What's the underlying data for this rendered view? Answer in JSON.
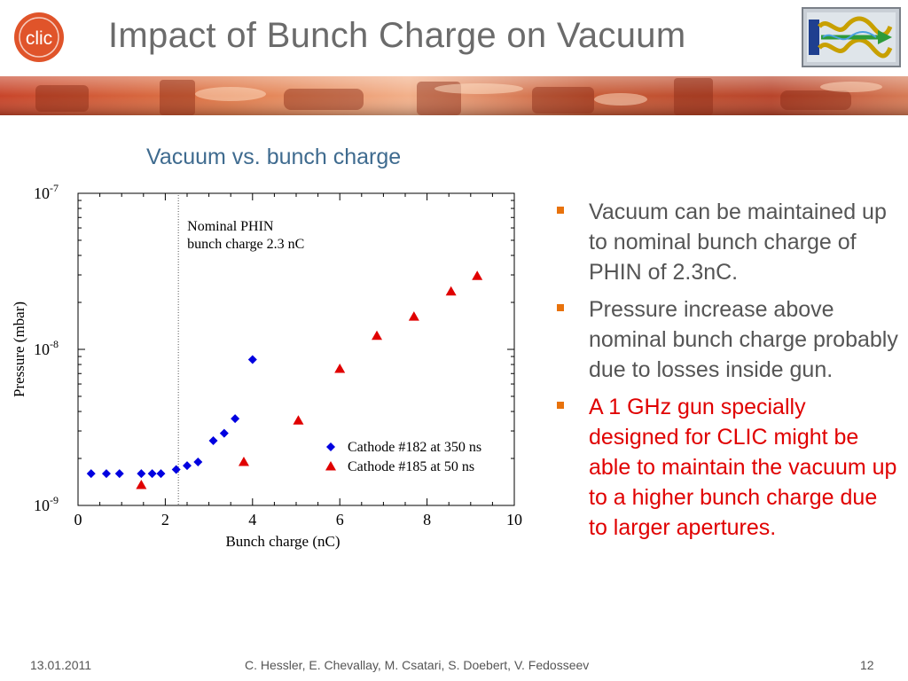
{
  "slide": {
    "title": "Impact of Bunch Charge on Vacuum",
    "logo_left_text": "clic"
  },
  "chart_data": {
    "type": "scatter",
    "title": "Vacuum vs. bunch charge",
    "xlabel": "Bunch charge (nC)",
    "ylabel": "Pressure (mbar)",
    "xlim": [
      0,
      10
    ],
    "ylim": [
      1e-09,
      1e-07
    ],
    "yscale": "log",
    "x_ticks": [
      "0",
      "2",
      "4",
      "6",
      "8",
      "10"
    ],
    "y_ticks": [
      {
        "base": "10",
        "exp": "-7"
      },
      {
        "base": "10",
        "exp": "-8"
      },
      {
        "base": "10",
        "exp": "-9"
      }
    ],
    "annotation": {
      "line1": "Nominal PHIN",
      "line2": "bunch charge 2.3 nC",
      "x": 2.3
    },
    "legend_position": "bottom-right",
    "series": [
      {
        "name": "Cathode #182 at 350 ns",
        "marker": "diamond",
        "color": "#0000e0",
        "x": [
          0.3,
          0.65,
          0.95,
          1.45,
          1.7,
          1.9,
          2.25,
          2.5,
          2.75,
          3.1,
          3.35,
          3.6,
          4.0
        ],
        "y": [
          1.6e-09,
          1.6e-09,
          1.6e-09,
          1.6e-09,
          1.6e-09,
          1.6e-09,
          1.7e-09,
          1.8e-09,
          1.9e-09,
          2.6e-09,
          2.9e-09,
          3.6e-09,
          8.6e-09
        ]
      },
      {
        "name": "Cathode #185 at 50 ns",
        "marker": "triangle",
        "color": "#e00000",
        "x": [
          1.45,
          3.8,
          5.05,
          6.0,
          6.85,
          7.7,
          8.55,
          9.15
        ],
        "y": [
          1.35e-09,
          1.9e-09,
          3.5e-09,
          7.5e-09,
          1.22e-08,
          1.62e-08,
          2.35e-08,
          2.95e-08
        ]
      }
    ]
  },
  "bullets": [
    {
      "text": "Vacuum can be maintained up to nominal bunch charge of PHIN of 2.3nC.",
      "highlight": false
    },
    {
      "text": "Pressure increase above nominal bunch charge probably due to losses inside gun.",
      "highlight": false
    },
    {
      "text": "A 1 GHz gun specially designed for CLIC might be able to maintain the vacuum up to a higher bunch charge due to larger apertures.",
      "highlight": true
    }
  ],
  "footer": {
    "date": "13.01.2011",
    "authors": "C. Hessler, E. Chevallay, M. Csatari, S. Doebert, V. Fedosseev",
    "page": "12"
  },
  "colors": {
    "bullet_marker": "#e8720c",
    "highlight_text": "#e00000",
    "chart_title": "#3f6b8f"
  }
}
